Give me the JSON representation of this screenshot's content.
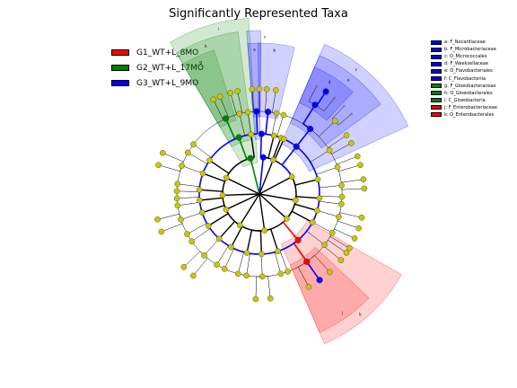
{
  "chart_data": {
    "type": "cladogram",
    "title": "Significantly Represented Taxa",
    "groups": [
      {
        "name": "G1_WT+L_8MO",
        "color": "#ff0000"
      },
      {
        "name": "G2_WT+L_17MO",
        "color": "#008000"
      },
      {
        "name": "G3_WT+L_9MO",
        "color": "#0000ff"
      }
    ],
    "taxa": [
      {
        "key": "a",
        "label": "a: F_Nocardiaceae",
        "group": "G3_WT+L_9MO",
        "color": "#0000ff"
      },
      {
        "key": "b",
        "label": "b: F_Microbacteriaceae",
        "group": "G3_WT+L_9MO",
        "color": "#0000ff"
      },
      {
        "key": "c",
        "label": "c: O_Micrococcales",
        "group": "G3_WT+L_9MO",
        "color": "#0000ff"
      },
      {
        "key": "d",
        "label": "d: F_Weeksellaceae",
        "group": "G3_WT+L_9MO",
        "color": "#0000ff"
      },
      {
        "key": "e",
        "label": "e: O_Flavobacteriales",
        "group": "G3_WT+L_9MO",
        "color": "#0000ff"
      },
      {
        "key": "f",
        "label": "f: C_Flavobacteriia",
        "group": "G3_WT+L_9MO",
        "color": "#0000ff"
      },
      {
        "key": "g",
        "label": "g: F_Gloeobacteraceae",
        "group": "G2_WT+L_17MO",
        "color": "#008000"
      },
      {
        "key": "h",
        "label": "h: O_Gloeobacterales",
        "group": "G2_WT+L_17MO",
        "color": "#008000"
      },
      {
        "key": "i",
        "label": "i: C_Gloeobacteria",
        "group": "G2_WT+L_17MO",
        "color": "#008000"
      },
      {
        "key": "j",
        "label": "j: F_Enterobacteriaceae",
        "group": "G1_WT+L_8MO",
        "color": "#ff0000"
      },
      {
        "key": "k",
        "label": "k: O_Enterobacterales",
        "group": "G1_WT+L_8MO",
        "color": "#ff0000"
      }
    ],
    "node_color_default": "#c8c800"
  }
}
